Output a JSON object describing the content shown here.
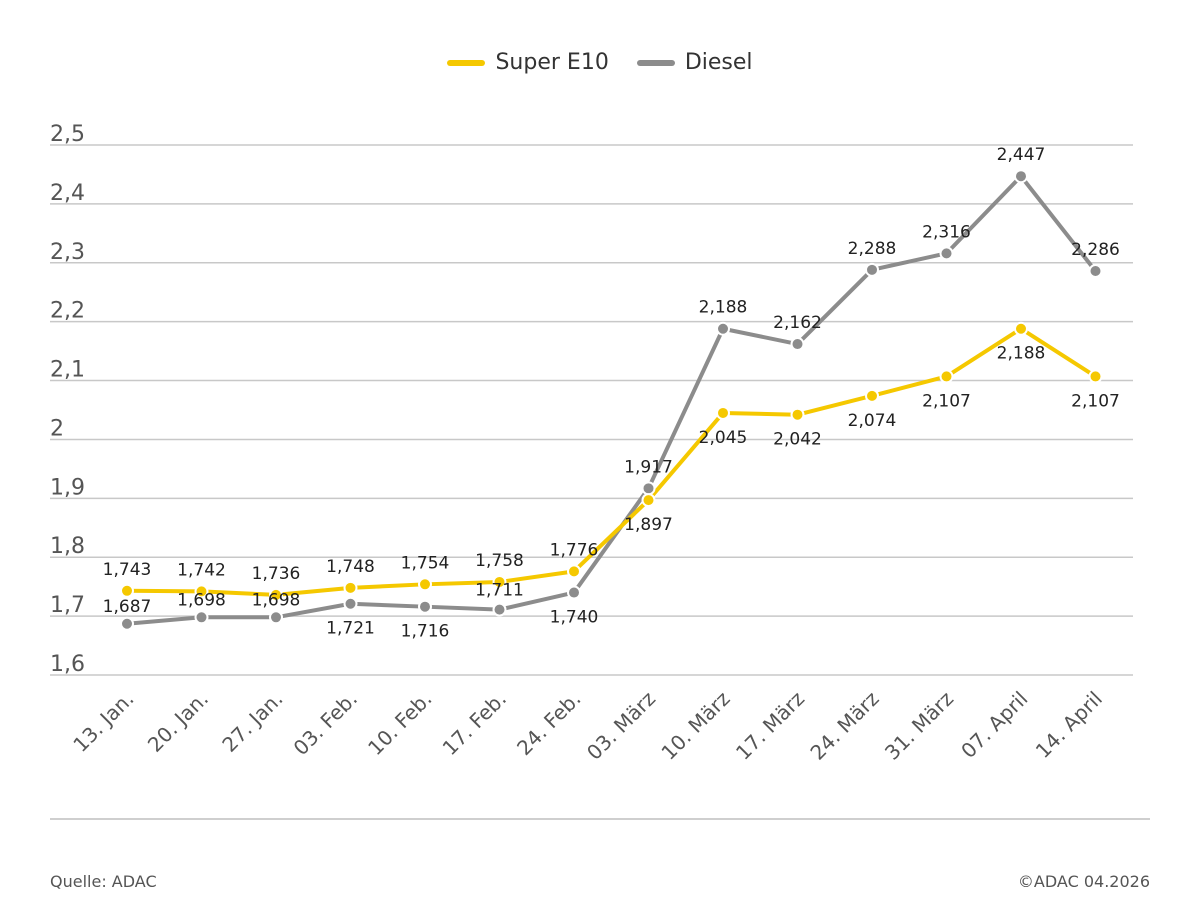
{
  "chart_data": {
    "type": "line",
    "categories": [
      "13. Jan.",
      "20. Jan.",
      "27. Jan.",
      "03. Feb.",
      "10. Feb.",
      "17. Feb.",
      "24. Feb.",
      "03. März",
      "10. März",
      "17. März",
      "24. März",
      "31. März",
      "07. April",
      "14. April"
    ],
    "series": [
      {
        "name": "Super E10",
        "color": "#f5c800",
        "values": [
          1.743,
          1.742,
          1.736,
          1.748,
          1.754,
          1.758,
          1.776,
          1.897,
          2.045,
          2.042,
          2.074,
          2.107,
          2.188,
          2.107
        ],
        "labels": [
          "1,743",
          "1,742",
          "1,736",
          "1,748",
          "1,754",
          "1,758",
          "1,776",
          "1,897",
          "2,045",
          "2,042",
          "2,074",
          "2,107",
          "2,188",
          "2,107"
        ]
      },
      {
        "name": "Diesel",
        "color": "#8c8c8c",
        "values": [
          1.687,
          1.698,
          1.698,
          1.721,
          1.716,
          1.711,
          1.74,
          1.917,
          2.188,
          2.162,
          2.288,
          2.316,
          2.447,
          2.286
        ],
        "labels": [
          "1,687",
          "1,698",
          "1,698",
          "1,721",
          "1,716",
          "1,711",
          "1,740",
          "1,917",
          "2,188",
          "2,162",
          "2,288",
          "2,316",
          "2,447",
          "2,286"
        ]
      }
    ],
    "ylim": [
      1.6,
      2.5
    ],
    "yticks": [
      1.6,
      1.7,
      1.8,
      1.9,
      2.0,
      2.1,
      2.2,
      2.3,
      2.4,
      2.5
    ],
    "ytick_labels": [
      "1,6",
      "1,7",
      "1,8",
      "1,9",
      "2",
      "2,1",
      "2,2",
      "2,3",
      "2,4",
      "2,5"
    ],
    "grid": true,
    "legend_position": "top-center",
    "xlabel": "",
    "ylabel": ""
  },
  "legend": {
    "items": [
      {
        "label": "Super E10",
        "color": "#f5c800"
      },
      {
        "label": "Diesel",
        "color": "#8c8c8c"
      }
    ]
  },
  "footer": {
    "source": "Quelle: ADAC",
    "copyright": "©ADAC 04.2026"
  }
}
